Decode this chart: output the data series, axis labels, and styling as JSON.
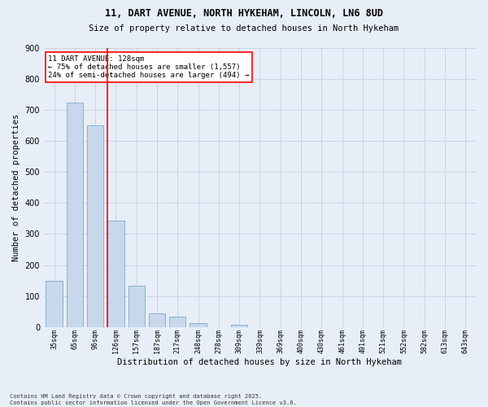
{
  "title_line1": "11, DART AVENUE, NORTH HYKEHAM, LINCOLN, LN6 8UD",
  "title_line2": "Size of property relative to detached houses in North Hykeham",
  "categories": [
    "35sqm",
    "65sqm",
    "96sqm",
    "126sqm",
    "157sqm",
    "187sqm",
    "217sqm",
    "248sqm",
    "278sqm",
    "309sqm",
    "339sqm",
    "369sqm",
    "400sqm",
    "430sqm",
    "461sqm",
    "491sqm",
    "521sqm",
    "552sqm",
    "582sqm",
    "613sqm",
    "643sqm"
  ],
  "values": [
    150,
    724,
    651,
    343,
    133,
    45,
    33,
    13,
    0,
    7,
    0,
    0,
    0,
    0,
    0,
    0,
    0,
    0,
    0,
    0,
    0
  ],
  "bar_color": "#c8d8ec",
  "bar_edge_color": "#7aaace",
  "vline_x_index": 3,
  "vline_color": "red",
  "annotation_text": "11 DART AVENUE: 128sqm\n← 75% of detached houses are smaller (1,557)\n24% of semi-detached houses are larger (494) →",
  "annotation_box_color": "white",
  "annotation_box_edge_color": "red",
  "xlabel": "Distribution of detached houses by size in North Hykeham",
  "ylabel": "Number of detached properties",
  "ylim": [
    0,
    900
  ],
  "yticks": [
    0,
    100,
    200,
    300,
    400,
    500,
    600,
    700,
    800,
    900
  ],
  "grid_color": "#c8d4e8",
  "background_color": "#e8eef8",
  "footer": "Contains HM Land Registry data © Crown copyright and database right 2025.\nContains public sector information licensed under the Open Government Licence v3.0."
}
